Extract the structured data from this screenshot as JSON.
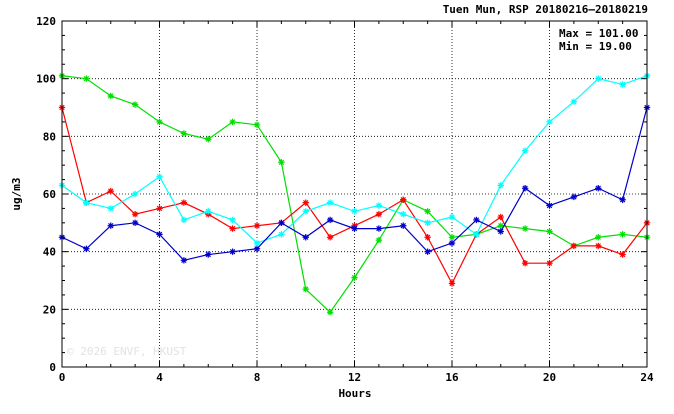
{
  "header": {
    "title": "Tuen Mun, RSP 20180216–20180219"
  },
  "stats": {
    "max_label": "Max = 101.00",
    "min_label": "Min =  19.00"
  },
  "watermark": "© 2026  ENVF, HKUST",
  "chart_data": {
    "type": "line",
    "xlabel": "Hours",
    "ylabel": "ug/m3",
    "xlim": [
      0,
      24
    ],
    "ylim": [
      0,
      120
    ],
    "x_ticks": [
      0,
      4,
      8,
      12,
      16,
      20,
      24
    ],
    "y_ticks": [
      0,
      20,
      40,
      60,
      80,
      100,
      120
    ],
    "grid": true,
    "marker": "asterisk",
    "x": [
      0,
      1,
      2,
      3,
      4,
      5,
      6,
      7,
      8,
      9,
      10,
      11,
      12,
      13,
      14,
      15,
      16,
      17,
      18,
      19,
      20,
      21,
      22,
      23,
      24
    ],
    "series": [
      {
        "color": "#00e000",
        "values": [
          101,
          100,
          94,
          91,
          85,
          81,
          79,
          85,
          84,
          71,
          27,
          19,
          31,
          44,
          58,
          54,
          45,
          46,
          49,
          48,
          47,
          42,
          45,
          46,
          45
        ]
      },
      {
        "color": "#ff0000",
        "values": [
          90,
          57,
          61,
          53,
          55,
          57,
          53,
          48,
          49,
          50,
          57,
          45,
          49,
          53,
          58,
          45,
          29,
          46,
          52,
          36,
          36,
          42,
          42,
          39,
          50
        ]
      },
      {
        "color": "#00ffff",
        "values": [
          63,
          57,
          55,
          60,
          66,
          51,
          54,
          51,
          43,
          46,
          54,
          57,
          54,
          56,
          53,
          50,
          52,
          46,
          63,
          75,
          85,
          92,
          100,
          98,
          101
        ]
      },
      {
        "color": "#0000cc",
        "values": [
          45,
          41,
          49,
          50,
          46,
          37,
          39,
          40,
          41,
          50,
          45,
          51,
          48,
          48,
          49,
          40,
          43,
          51,
          47,
          62,
          56,
          59,
          62,
          58,
          90
        ]
      }
    ]
  }
}
